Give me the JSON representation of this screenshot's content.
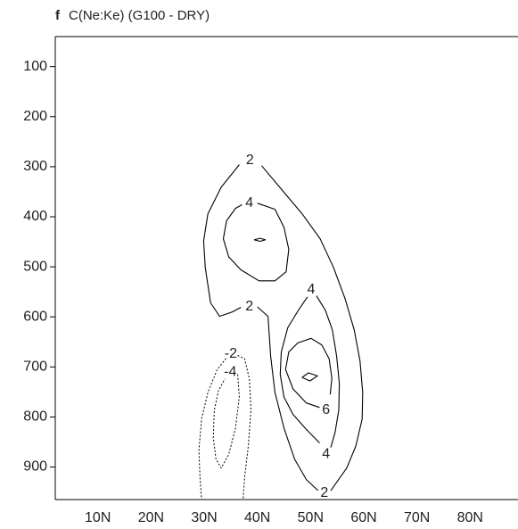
{
  "chart_data": {
    "type": "contour",
    "panel": "f",
    "title": "C(Ne:Ke) (G100 - DRY)",
    "xlim": [
      2,
      89
    ],
    "ylim": [
      40,
      965
    ],
    "y_reversed": true,
    "xticks": [
      {
        "value": 10,
        "label": "10N"
      },
      {
        "value": 20,
        "label": "20N"
      },
      {
        "value": 30,
        "label": "30N"
      },
      {
        "value": 40,
        "label": "40N"
      },
      {
        "value": 50,
        "label": "50N"
      },
      {
        "value": 60,
        "label": "60N"
      },
      {
        "value": 70,
        "label": "70N"
      },
      {
        "value": 80,
        "label": "80N"
      }
    ],
    "yticks": [
      100,
      200,
      300,
      400,
      500,
      600,
      700,
      800,
      900
    ],
    "color": "#000000",
    "contours": [
      {
        "style": "solid",
        "x": [
          36.6,
          33.2,
          30.7,
          29.9,
          30.2,
          31.2,
          32.9,
          35.3,
          36.9
        ],
        "y": [
          296,
          341,
          394,
          448,
          501,
          572,
          599,
          590,
          581
        ]
      },
      {
        "style": "solid",
        "x": [
          40.0,
          42.0,
          42.5,
          43.3,
          45.0,
          47.0,
          49.2,
          51.4
        ],
        "y": [
          580,
          599,
          679,
          751,
          822,
          884,
          925,
          947
        ]
      },
      {
        "style": "solid",
        "x": [
          53.8,
          56.8,
          58.5,
          59.7,
          59.8,
          59.3,
          58.2,
          56.5,
          54.3,
          51.8,
          48.4,
          44.2,
          40.8
        ],
        "y": [
          947,
          902,
          858,
          804,
          751,
          688,
          626,
          564,
          501,
          444,
          394,
          341,
          298
        ]
      },
      {
        "style": "solid",
        "x": [
          40.0,
          43.3,
          45.0,
          45.9,
          45.4,
          43.3,
          40.3,
          36.9,
          34.6,
          33.6,
          34.2,
          35.9,
          37.1
        ],
        "y": [
          373,
          385,
          421,
          465,
          510,
          528,
          528,
          506,
          480,
          444,
          408,
          383,
          376
        ]
      },
      {
        "style": "solid",
        "x": [
          39.4,
          40.5,
          41.5,
          40.5,
          39.4
        ],
        "y": [
          446,
          443,
          446,
          449,
          446
        ]
      },
      {
        "style": "solid",
        "x": [
          49.4,
          47.7,
          45.7,
          44.5,
          44.3,
          45.0,
          46.7,
          49.2,
          51.7
        ],
        "y": [
          560,
          587,
          622,
          670,
          715,
          760,
          795,
          825,
          852
        ]
      },
      {
        "style": "solid",
        "x": [
          51.1,
          52.8,
          54.1,
          54.9,
          55.4,
          55.3,
          54.6,
          53.8
        ],
        "y": [
          558,
          587,
          626,
          679,
          733,
          786,
          831,
          861
        ]
      },
      {
        "style": "solid",
        "x": [
          51.7,
          49.2,
          46.7,
          45.3,
          45.9,
          47.6,
          50.1,
          52.1,
          53.5,
          54.0,
          53.7
        ],
        "y": [
          781,
          772,
          744,
          705,
          670,
          652,
          643,
          656,
          684,
          723,
          755
        ]
      },
      {
        "style": "solid",
        "x": [
          48.4,
          49.6,
          51.3,
          49.9,
          48.4
        ],
        "y": [
          721,
          712,
          718,
          728,
          721
        ]
      },
      {
        "style": "dotted",
        "x": [
          36.3,
          37.6,
          38.5,
          38.8,
          38.3,
          37.6,
          37.3
        ],
        "y": [
          677,
          684,
          724,
          786,
          858,
          920,
          965
        ]
      },
      {
        "style": "dotted",
        "x": [
          34.1,
          32.4,
          30.7,
          29.5,
          29.0,
          29.2,
          29.5
        ],
        "y": [
          683,
          706,
          751,
          804,
          866,
          920,
          965
        ]
      },
      {
        "style": "dotted",
        "x": [
          36.3,
          36.6,
          35.9,
          34.6,
          33.2,
          32.2,
          31.7,
          31.9,
          32.7,
          33.9
        ],
        "y": [
          715,
          760,
          822,
          875,
          902,
          884,
          840,
          786,
          747,
          724
        ]
      }
    ],
    "contour_labels": [
      {
        "text": "2",
        "x": 38.6,
        "y": 287
      },
      {
        "text": "4",
        "x": 38.5,
        "y": 373
      },
      {
        "text": "2",
        "x": 38.5,
        "y": 580
      },
      {
        "text": "4",
        "x": 50.1,
        "y": 546
      },
      {
        "text": "-2",
        "x": 35.0,
        "y": 674
      },
      {
        "text": "-4",
        "x": 34.9,
        "y": 711
      },
      {
        "text": "6",
        "x": 52.9,
        "y": 786
      },
      {
        "text": "4",
        "x": 52.9,
        "y": 875
      },
      {
        "text": "2",
        "x": 52.6,
        "y": 952
      }
    ]
  }
}
